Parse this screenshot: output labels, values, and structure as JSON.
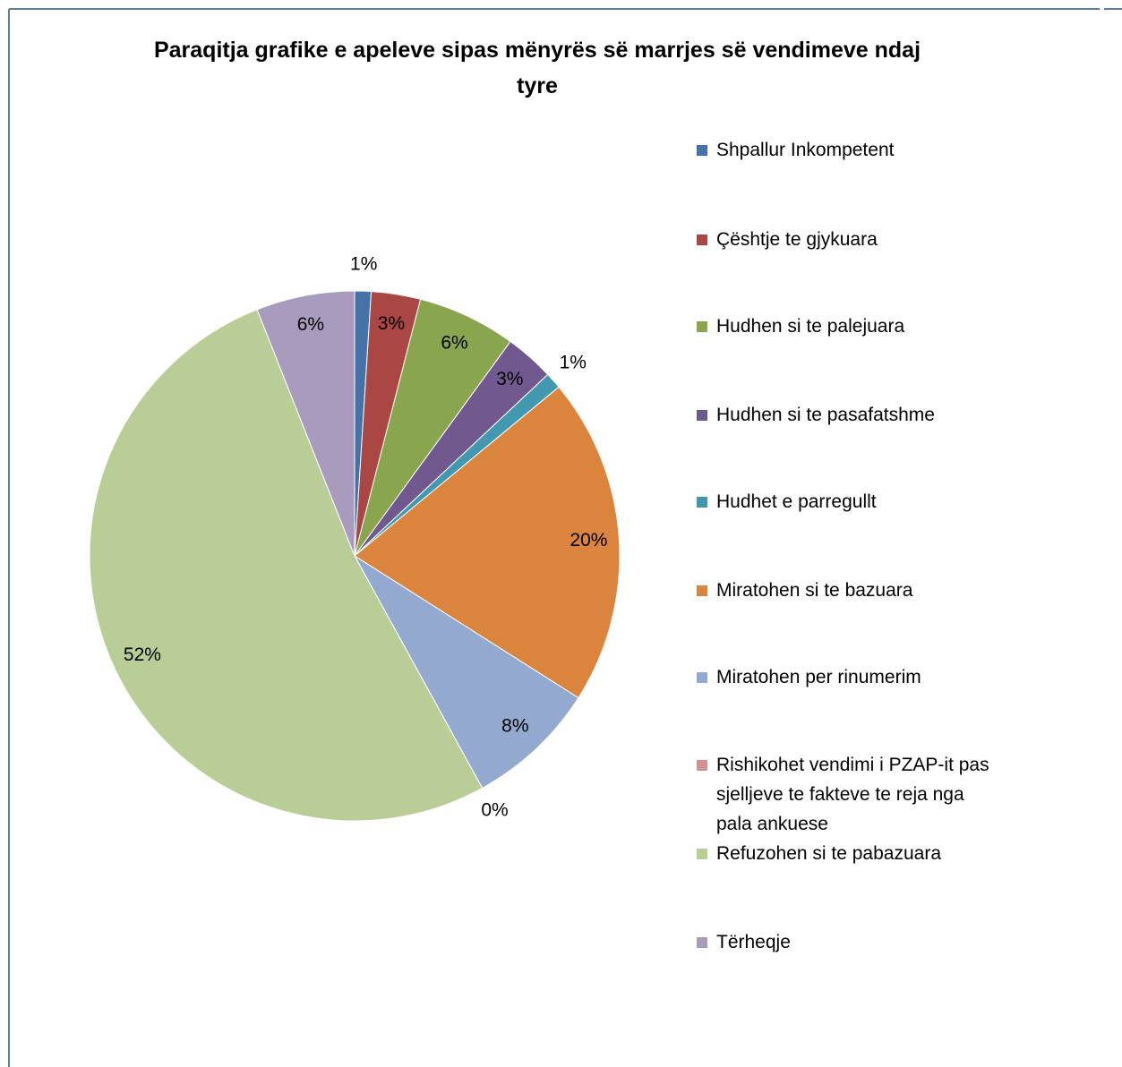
{
  "chart_data": {
    "type": "pie",
    "title": "Paraqitja grafike e apeleve sipas mënyrës së marrjes së vendimeve ndaj tyre",
    "categories": [
      "Shpallur Inkompetent",
      "Çështje te gjykuara",
      "Hudhen si te palejuara",
      "Hudhen si te pasafatshme",
      "Hudhet e parregullt",
      "Miratohen si te bazuara",
      "Miratohen per rinumerim",
      "Rishikohet vendimi i PZAP-it pas sjelljeve te fakteve te reja nga pala ankuese",
      "Refuzohen si te pabazuara",
      "Tërheqje"
    ],
    "values": [
      1,
      3,
      6,
      3,
      1,
      20,
      8,
      0,
      52,
      6
    ],
    "value_labels": [
      "1%",
      "3%",
      "6%",
      "3%",
      "1%",
      "20%",
      "8%",
      "0%",
      "52%",
      "6%"
    ],
    "colors": [
      "#4572a7",
      "#aa4643",
      "#89a54e",
      "#71588f",
      "#4198af",
      "#db843d",
      "#93a9cf",
      "#d19392",
      "#b9cd96",
      "#a99bbd"
    ],
    "legend": "right"
  }
}
